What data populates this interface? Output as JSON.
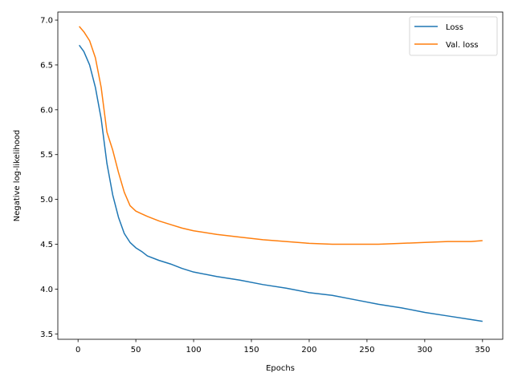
{
  "chart_data": {
    "type": "line",
    "title": "",
    "xlabel": "Epochs",
    "ylabel": "Negative log-likelihood",
    "xlim": [
      -17.5,
      367.5
    ],
    "ylim": [
      3.44,
      7.09
    ],
    "xticks": [
      0,
      50,
      100,
      150,
      200,
      250,
      300,
      350
    ],
    "yticks": [
      3.5,
      4.0,
      4.5,
      5.0,
      5.5,
      6.0,
      6.5,
      7.0
    ],
    "grid": false,
    "legend_position": "top-right",
    "series": [
      {
        "name": "Loss",
        "color": "#1f77b4",
        "x": [
          1,
          5,
          10,
          15,
          20,
          25,
          30,
          35,
          40,
          45,
          50,
          55,
          60,
          70,
          80,
          90,
          100,
          120,
          140,
          160,
          180,
          200,
          220,
          240,
          260,
          280,
          300,
          320,
          340,
          350
        ],
        "y": [
          6.72,
          6.65,
          6.5,
          6.25,
          5.9,
          5.4,
          5.05,
          4.8,
          4.62,
          4.52,
          4.46,
          4.42,
          4.37,
          4.32,
          4.28,
          4.23,
          4.19,
          4.14,
          4.1,
          4.05,
          4.01,
          3.96,
          3.93,
          3.88,
          3.83,
          3.79,
          3.74,
          3.7,
          3.66,
          3.64
        ]
      },
      {
        "name": "Val. loss",
        "color": "#ff7f0e",
        "x": [
          1,
          5,
          10,
          15,
          20,
          25,
          30,
          35,
          40,
          45,
          50,
          55,
          60,
          70,
          80,
          90,
          100,
          120,
          140,
          160,
          180,
          200,
          220,
          240,
          260,
          280,
          300,
          320,
          340,
          350
        ],
        "y": [
          6.93,
          6.87,
          6.77,
          6.58,
          6.25,
          5.75,
          5.55,
          5.3,
          5.08,
          4.93,
          4.87,
          4.84,
          4.81,
          4.76,
          4.72,
          4.68,
          4.65,
          4.61,
          4.58,
          4.55,
          4.53,
          4.51,
          4.5,
          4.5,
          4.5,
          4.51,
          4.52,
          4.53,
          4.53,
          4.54
        ]
      }
    ]
  }
}
